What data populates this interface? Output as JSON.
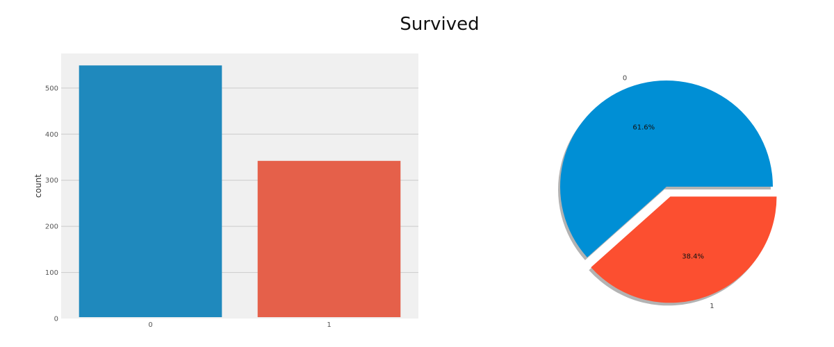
{
  "figure": {
    "title": "Survived"
  },
  "chart_data": [
    {
      "type": "bar",
      "categories": [
        "0",
        "1"
      ],
      "values": [
        549,
        342
      ],
      "ylabel": "count",
      "xlabel": "",
      "ylim": [
        0,
        575
      ],
      "yticks": [
        0,
        100,
        200,
        300,
        400,
        500
      ],
      "grid": true,
      "colors": [
        "#1f89bd",
        "#e5604a"
      ],
      "background": "#f0f0f0"
    },
    {
      "type": "pie",
      "labels": [
        "0",
        "1"
      ],
      "values": [
        61.6,
        38.4
      ],
      "value_labels": [
        "61.6%",
        "38.4%"
      ],
      "explode": [
        0,
        0.1
      ],
      "shadow": true,
      "colors": [
        "#008fd5",
        "#fc4f30"
      ]
    }
  ]
}
